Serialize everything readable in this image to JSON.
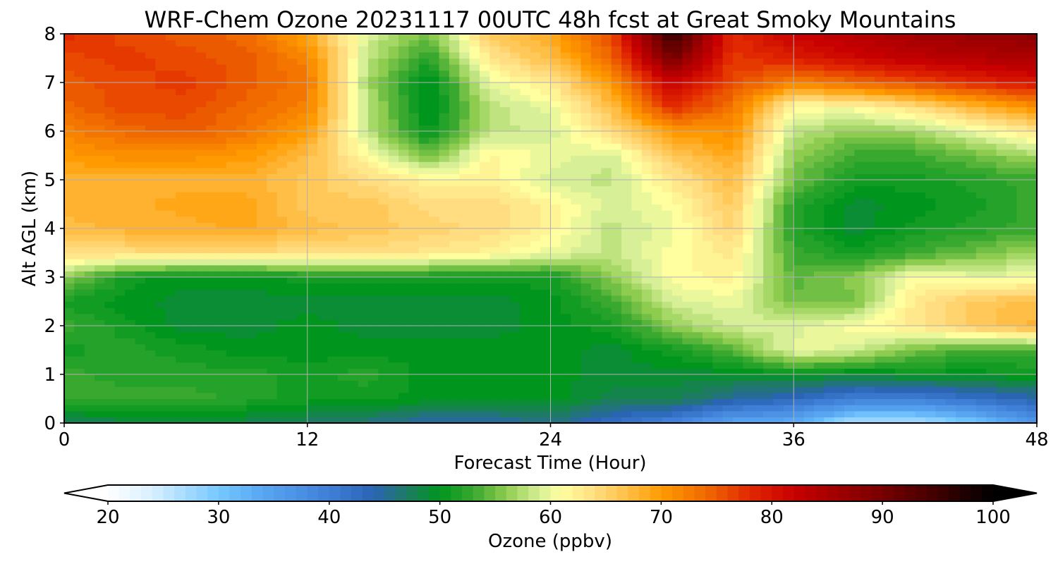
{
  "chart_data": {
    "type": "heatmap",
    "title": "WRF-Chem Ozone  20231117 00UTC 48h fcst at Great Smoky Mountains",
    "xlabel": "Forecast Time (Hour)",
    "ylabel": "Alt AGL (km)",
    "xlim": [
      0,
      48
    ],
    "ylim": [
      0,
      8
    ],
    "x_ticks": [
      0,
      12,
      24,
      36,
      48
    ],
    "y_ticks": [
      0,
      1,
      2,
      3,
      4,
      5,
      6,
      7,
      8
    ],
    "grid": true,
    "x": [
      0,
      3,
      6,
      9,
      12,
      15,
      18,
      21,
      24,
      27,
      30,
      33,
      36,
      39,
      42,
      45,
      48
    ],
    "y": [
      0,
      0.5,
      1,
      1.5,
      2,
      2.5,
      3,
      3.5,
      4,
      4.5,
      5,
      5.5,
      6,
      6.5,
      7,
      7.5,
      8
    ],
    "z": [
      [
        47,
        48,
        49,
        48,
        47,
        46,
        44,
        44,
        46,
        42,
        39,
        34,
        33,
        26,
        26,
        30,
        37
      ],
      [
        53,
        53,
        53,
        52,
        51,
        51,
        50,
        50,
        50,
        48,
        48,
        45,
        43,
        40,
        40,
        42,
        44
      ],
      [
        53,
        52,
        52,
        52,
        51,
        52,
        50,
        50,
        50,
        49,
        49,
        49,
        50,
        49,
        50,
        50,
        51
      ],
      [
        51,
        52,
        51,
        50,
        50,
        50,
        50,
        50,
        50,
        49,
        51,
        54,
        60,
        59,
        55,
        53,
        53
      ],
      [
        53,
        51,
        49,
        49,
        50,
        49,
        49,
        49,
        50,
        51,
        56,
        59,
        59,
        61,
        63,
        66,
        68
      ],
      [
        51,
        50,
        49,
        49,
        49,
        49,
        49,
        49,
        50,
        53,
        59,
        60,
        55,
        55,
        63,
        66,
        67
      ],
      [
        56,
        51,
        50,
        50,
        51,
        51,
        51,
        51,
        51,
        56,
        61,
        62,
        54,
        56,
        61,
        60,
        60
      ],
      [
        64,
        64,
        64,
        64,
        64,
        64,
        63,
        62,
        60,
        58,
        61,
        63,
        53,
        51,
        53,
        55,
        57
      ],
      [
        67,
        68,
        68,
        69,
        67,
        66,
        65,
        64,
        62,
        58,
        60,
        65,
        52,
        49,
        51,
        52,
        53
      ],
      [
        68,
        68,
        69,
        69,
        66,
        66,
        64,
        64,
        62,
        59,
        61,
        66,
        52,
        49,
        50,
        51,
        53
      ],
      [
        68,
        68,
        68,
        68,
        66,
        64,
        62,
        62,
        59,
        58,
        63,
        67,
        55,
        51,
        51,
        52,
        53
      ],
      [
        70,
        71,
        71,
        70,
        67,
        61,
        55,
        62,
        60,
        59,
        66,
        69,
        56,
        53,
        53,
        55,
        57
      ],
      [
        72,
        74,
        75,
        73,
        70,
        58,
        50,
        58,
        59,
        64,
        70,
        71,
        58,
        56,
        57,
        60,
        63
      ],
      [
        74,
        76,
        76,
        74,
        72,
        58,
        49,
        58,
        60,
        67,
        78,
        73,
        61,
        61,
        64,
        68,
        71
      ],
      [
        75,
        76,
        77,
        75,
        73,
        57,
        49,
        60,
        63,
        70,
        82,
        76,
        72,
        74,
        76,
        78,
        80
      ],
      [
        76,
        77,
        76,
        75,
        72,
        58,
        52,
        63,
        67,
        74,
        90,
        77,
        79,
        81,
        83,
        84,
        85
      ],
      [
        78,
        76,
        75,
        74,
        69,
        59,
        55,
        66,
        69,
        76,
        96,
        78,
        82,
        84,
        86,
        87,
        88
      ]
    ]
  },
  "colorbar": {
    "label": "Ozone  (ppbv)",
    "min": 20,
    "max": 100,
    "ticks": [
      20,
      30,
      40,
      50,
      60,
      70,
      80,
      90,
      100
    ],
    "extend": "both",
    "stops": [
      {
        "v": 20,
        "c": "#ffffff"
      },
      {
        "v": 24,
        "c": "#d8efff"
      },
      {
        "v": 30,
        "c": "#76c8ff"
      },
      {
        "v": 34,
        "c": "#58a6f2"
      },
      {
        "v": 40,
        "c": "#3f7fd7"
      },
      {
        "v": 44,
        "c": "#2a64b3"
      },
      {
        "v": 47,
        "c": "#1e7a63"
      },
      {
        "v": 50,
        "c": "#00961e"
      },
      {
        "v": 53,
        "c": "#38a82e"
      },
      {
        "v": 56,
        "c": "#8ecc50"
      },
      {
        "v": 59,
        "c": "#d7ef96"
      },
      {
        "v": 61,
        "c": "#ffffa0"
      },
      {
        "v": 64,
        "c": "#ffdd80"
      },
      {
        "v": 67,
        "c": "#ffbe46"
      },
      {
        "v": 70,
        "c": "#ff9b00"
      },
      {
        "v": 74,
        "c": "#f06a00"
      },
      {
        "v": 78,
        "c": "#e12800"
      },
      {
        "v": 82,
        "c": "#c80000"
      },
      {
        "v": 88,
        "c": "#8c0000"
      },
      {
        "v": 94,
        "c": "#4a0000"
      },
      {
        "v": 100,
        "c": "#000000"
      }
    ]
  }
}
